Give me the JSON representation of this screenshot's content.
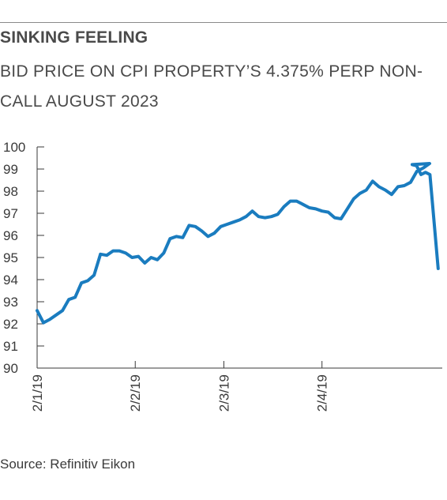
{
  "header": {
    "title": "SINKING FEELING",
    "subtitle": "BID PRICE ON CPI PROPERTY’S 4.375% PERP NON-CALL AUGUST 2023"
  },
  "footer": {
    "source": "Source: Refinitiv Eikon"
  },
  "chart_data": {
    "type": "line",
    "title": "SINKING FEELING",
    "subtitle": "BID PRICE ON CPI PROPERTY’S 4.375% PERP NON-CALL AUGUST 2023",
    "xlabel": "",
    "ylabel": "",
    "ylim": [
      90,
      100
    ],
    "yticks": [
      90,
      91,
      92,
      93,
      94,
      95,
      96,
      97,
      98,
      99,
      100
    ],
    "xticks": [
      "2/1/19",
      "2/2/19",
      "2/3/19",
      "2/4/19"
    ],
    "grid": false,
    "color": "#1a7cbf",
    "series": [
      {
        "x": [
          1,
          3,
          5,
          7,
          9,
          11,
          13,
          15,
          17,
          19,
          21,
          23,
          25,
          27,
          29,
          31,
          33,
          35,
          37,
          39,
          41,
          43,
          45,
          47,
          49,
          51,
          53,
          55,
          57,
          59,
          61,
          63,
          65,
          67,
          69,
          71,
          73,
          75,
          77,
          79,
          81,
          83,
          85,
          87,
          89,
          91,
          93,
          95,
          97,
          99,
          101,
          103,
          105,
          107,
          109,
          111,
          113,
          115,
          117,
          119,
          121,
          123,
          125
        ],
        "values": [
          92.6,
          92.05,
          92.2,
          92.4,
          92.6,
          93.1,
          93.2,
          93.85,
          93.95,
          94.2,
          95.15,
          95.1,
          95.3,
          95.3,
          95.2,
          95.0,
          95.05,
          94.75,
          95.0,
          94.9,
          95.2,
          95.85,
          95.95,
          95.9,
          96.45,
          96.4,
          96.2,
          95.95,
          96.1,
          96.4,
          96.5,
          96.6,
          96.7,
          96.85,
          97.1,
          96.85,
          96.8,
          96.85,
          96.95,
          97.3,
          97.55,
          97.55,
          97.4,
          97.25,
          97.2,
          97.1,
          97.05,
          96.8,
          96.75,
          97.2,
          97.65,
          97.9,
          98.05,
          98.45,
          98.2,
          98.05,
          97.85,
          98.2,
          98.25,
          98.4,
          98.9,
          99.05,
          99.25
        ]
      }
    ],
    "tail": [
      99.2,
      99.15,
      98.75,
      98.85,
      98.75,
      94.5
    ]
  }
}
